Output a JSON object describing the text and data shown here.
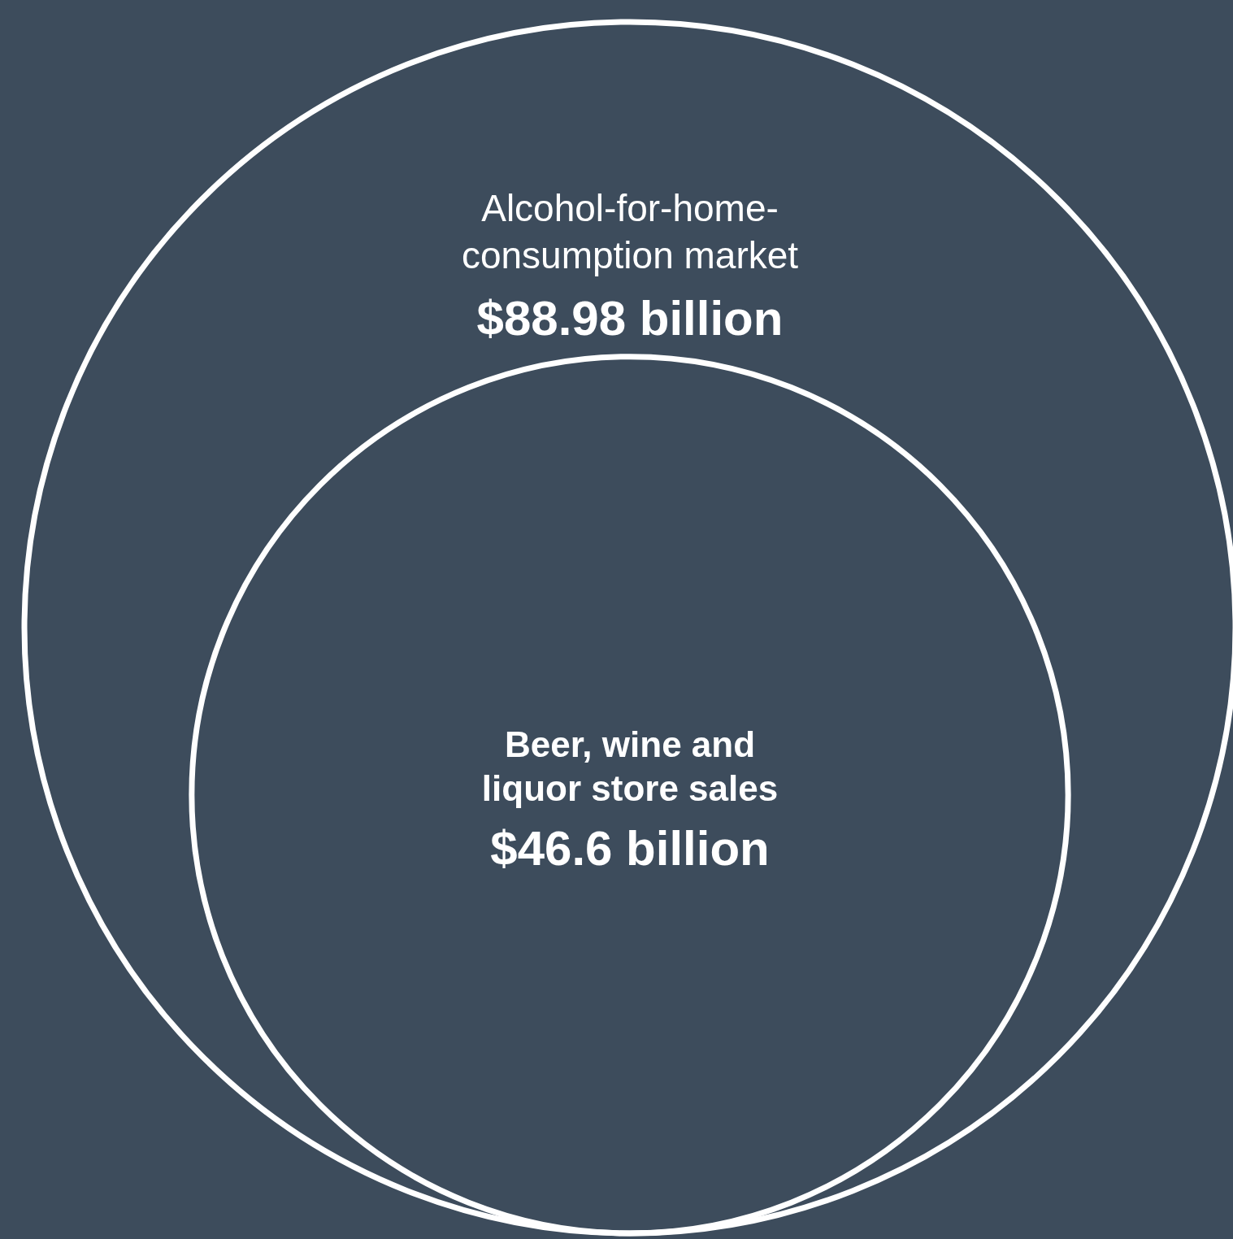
{
  "chart_data": {
    "type": "other",
    "categories": [
      "Alcohol-for-home-consumption market",
      "Beer, wine and liquor store sales"
    ],
    "values": [
      88.98,
      46.6
    ],
    "value_labels": [
      "$88.98 billion",
      "$46.6 billion"
    ],
    "colors": [
      "#ffffff",
      "#ffffff"
    ]
  }
}
